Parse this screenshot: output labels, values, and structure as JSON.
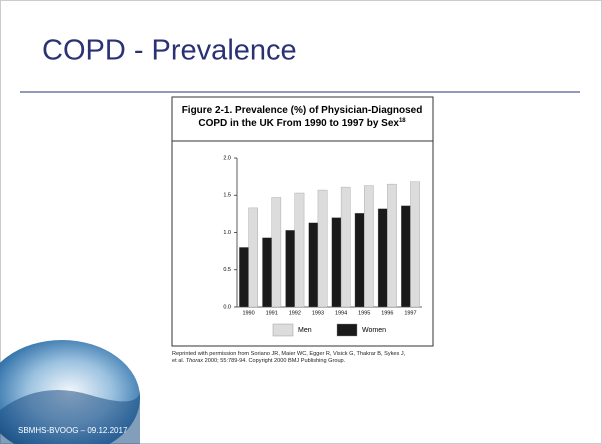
{
  "slide": {
    "title": "COPD - Prevalence",
    "footer": "SBMHS-BVOOG – 09.12.2017"
  },
  "chart_data": {
    "type": "bar",
    "title": "Figure 2-1. Prevalence (%) of Physician-Diagnosed COPD in the UK From 1990 to 1997 by Sex",
    "title_ref": "18",
    "categories": [
      "1990",
      "1991",
      "1992",
      "1993",
      "1994",
      "1995",
      "1996",
      "1997"
    ],
    "series": [
      {
        "name": "Men",
        "color": "#dcdcdc",
        "values": [
          1.33,
          1.47,
          1.53,
          1.57,
          1.61,
          1.63,
          1.65,
          1.68
        ]
      },
      {
        "name": "Women",
        "color": "#1a1a1a",
        "values": [
          0.8,
          0.93,
          1.03,
          1.13,
          1.2,
          1.26,
          1.32,
          1.36
        ]
      }
    ],
    "ylim": [
      0,
      2
    ],
    "yticks": [
      {
        "value": 0,
        "label": "0.0"
      },
      {
        "value": 0.5,
        "label": "0.5"
      },
      {
        "value": 1,
        "label": "1.0"
      },
      {
        "value": 1.5,
        "label": "1.5"
      },
      {
        "value": 2,
        "label": "2.0"
      }
    ],
    "caption": [
      "Reprinted with permission from Soriano JR, Maier WC, Egger R, Visick G, Thakrar B, Sykes J, et al. ",
      "Thorax",
      " 2000; 55:789-94. Copyright 2000 BMJ Publishing Group."
    ]
  }
}
